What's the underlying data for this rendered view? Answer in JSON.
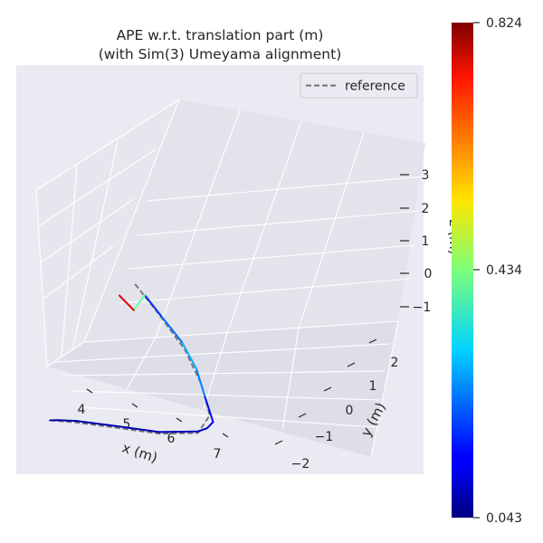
{
  "chart_data": {
    "type": "line",
    "projection": "3d",
    "title": "APE w.r.t. translation part (m)",
    "subtitle": "(with Sim(3) Umeyama alignment)",
    "xlabel": "x (m)",
    "ylabel": "y (m)",
    "zlabel": "z (m)",
    "x_ticks": [
      "4",
      "5",
      "6",
      "7"
    ],
    "y_ticks": [
      "−2",
      "−1",
      "0",
      "1",
      "2"
    ],
    "z_ticks": [
      "−1",
      "0",
      "1",
      "2",
      "3"
    ],
    "legend": {
      "entries": [
        "reference"
      ],
      "placement": "top-right"
    },
    "series": [
      {
        "name": "reference",
        "style": "dashed",
        "color": "#707070",
        "x": [
          3.6,
          4.3,
          5.3,
          6.5,
          7.4,
          7.55,
          7.1,
          6.4,
          5.4,
          4.6
        ],
        "y": [
          -1.3,
          -1.0,
          -0.6,
          -0.1,
          0.6,
          1.1,
          1.5,
          1.9,
          2.2,
          2.35
        ],
        "z": [
          -1.0,
          -0.9,
          -0.8,
          -0.7,
          -0.6,
          -0.2,
          0.4,
          1.0,
          1.6,
          2.1
        ]
      },
      {
        "name": "",
        "color_by": "ape",
        "x": [
          3.6,
          3.8,
          4.3,
          5.3,
          6.5,
          7.4,
          7.6,
          7.7,
          7.3,
          6.9,
          6.3,
          5.5,
          4.9,
          4.6,
          4.1
        ],
        "y": [
          -1.3,
          -1.2,
          -1.0,
          -0.6,
          -0.1,
          0.6,
          0.8,
          1.0,
          1.3,
          1.6,
          1.9,
          2.2,
          2.4,
          2.3,
          2.4
        ],
        "z": [
          -1.0,
          -0.95,
          -0.85,
          -0.75,
          -0.65,
          -0.55,
          -0.45,
          -0.3,
          0.2,
          0.75,
          1.2,
          1.55,
          1.85,
          1.3,
          1.5
        ],
        "ape": [
          0.06,
          0.07,
          0.08,
          0.08,
          0.08,
          0.09,
          0.1,
          0.12,
          0.18,
          0.3,
          0.25,
          0.2,
          0.15,
          0.68,
          0.82
        ]
      }
    ],
    "colorbar": {
      "colormap": "jet",
      "min": 0.043,
      "mid": 0.434,
      "max": 0.824,
      "tick_labels": [
        "0.824",
        "0.434",
        "0.043"
      ]
    },
    "xlim": [
      3.2,
      8.0
    ],
    "ylim": [
      -2.5,
      2.8
    ],
    "zlim": [
      -1.6,
      3.5
    ],
    "grid": true
  }
}
